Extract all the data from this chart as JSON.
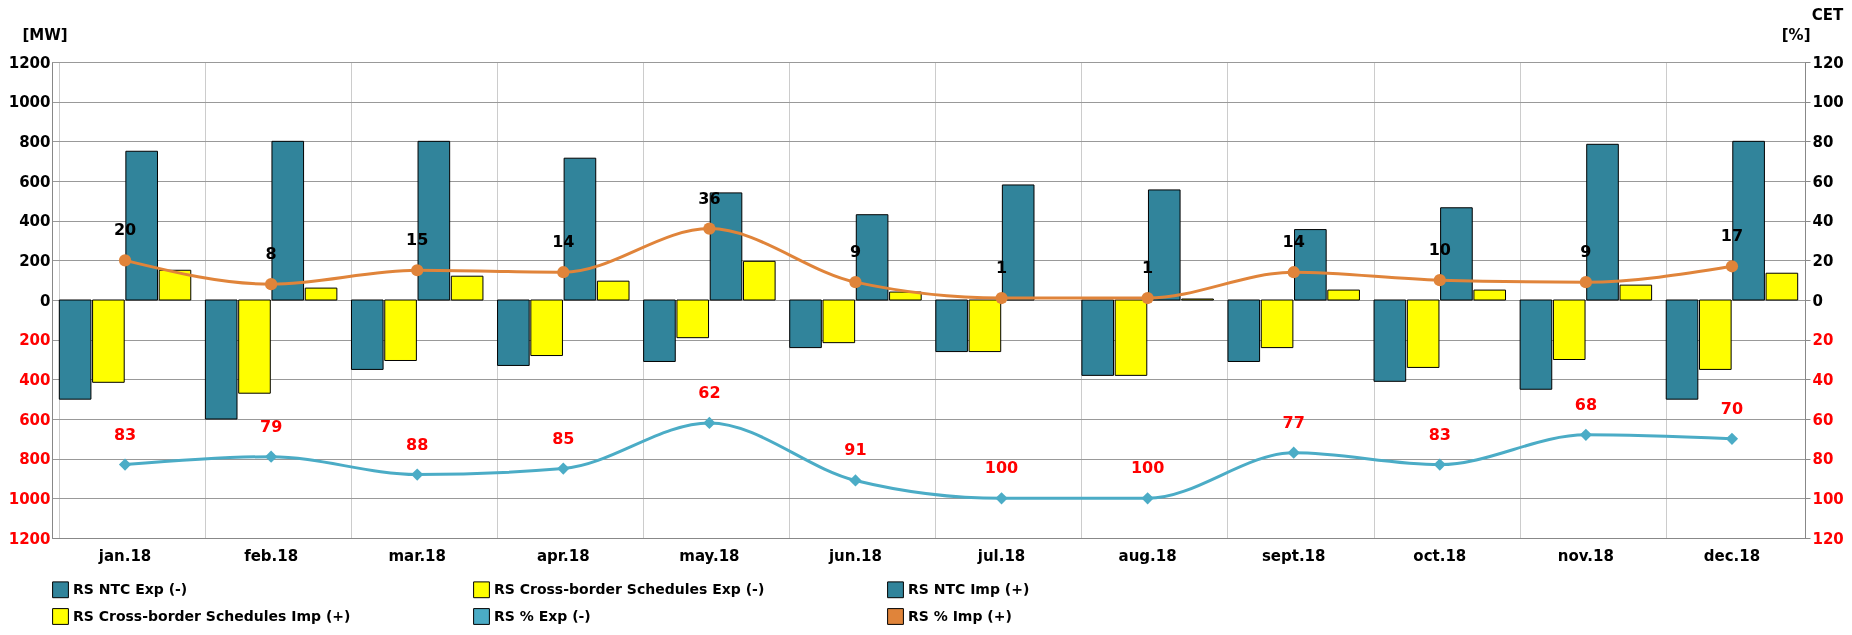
{
  "chart_data": {
    "type": "bar",
    "ylabel": "[MW]",
    "y2label": "[%]",
    "annotations": [
      "CET"
    ],
    "categories": [
      "jan.18",
      "feb.18",
      "mar.18",
      "apr.18",
      "may.18",
      "jun.18",
      "jul.18",
      "aug.18",
      "sept.18",
      "oct.18",
      "nov.18",
      "dec.18"
    ],
    "series": [
      {
        "name": "RS NTC Exp (-)",
        "color": "#31849b",
        "values": [
          -500,
          -600,
          -350,
          -330,
          -310,
          -240,
          -260,
          -380,
          -310,
          -410,
          -450,
          -500
        ]
      },
      {
        "name": "RS Cross-border Schedules Exp (-)",
        "color": "#ffff00",
        "values": [
          -415,
          -470,
          -305,
          -280,
          -190,
          -215,
          -260,
          -380,
          -240,
          -340,
          -300,
          -350
        ]
      },
      {
        "name": "RS NTC Imp (+)",
        "color": "#31849b",
        "values": [
          750,
          800,
          800,
          715,
          540,
          430,
          580,
          555,
          355,
          465,
          785,
          800
        ]
      },
      {
        "name": "RS Cross-border Schedules Imp (+)",
        "color": "#ffff00",
        "values": [
          150,
          60,
          120,
          95,
          195,
          40,
          null,
          5,
          50,
          50,
          75,
          135
        ]
      },
      {
        "name": "RS % Exp (-)",
        "type": "line",
        "axis": "y3",
        "marker": "diamond",
        "color": "#4bacc6",
        "values": [
          83,
          79,
          88,
          85,
          62,
          91,
          100,
          100,
          77,
          83,
          68,
          70
        ],
        "data_labels": true
      },
      {
        "name": "RS % Imp (+)",
        "type": "line",
        "axis": "y2",
        "marker": "circle",
        "color": "#e0843a",
        "values": [
          20,
          8,
          15,
          14,
          36,
          9,
          1,
          1,
          14,
          10,
          9,
          17
        ],
        "value_labels": [
          "20",
          "8",
          "15",
          "14",
          "36",
          "9",
          "1",
          "1",
          "14",
          "10",
          "9",
          "17"
        ]
      }
    ],
    "ylim": [
      -1200,
      1200
    ],
    "yticks": [
      {
        "value": -1200,
        "label": "1200"
      },
      {
        "value": -1000,
        "label": "1000"
      },
      {
        "value": -800,
        "label": "800"
      },
      {
        "value": -600,
        "label": "600"
      },
      {
        "value": -400,
        "label": "400"
      },
      {
        "value": -200,
        "label": "200"
      },
      0,
      200,
      400,
      600,
      800,
      1000,
      1200
    ],
    "y2lim": [
      -120,
      120
    ],
    "y2ticks": [
      0,
      20,
      40,
      60,
      80,
      100,
      120
    ],
    "y3lim": [
      120,
      -120
    ],
    "y3ticks": [
      20,
      40,
      60,
      80,
      100,
      120
    ],
    "grid": true,
    "legend": "bottom",
    "line_style": "solid"
  }
}
